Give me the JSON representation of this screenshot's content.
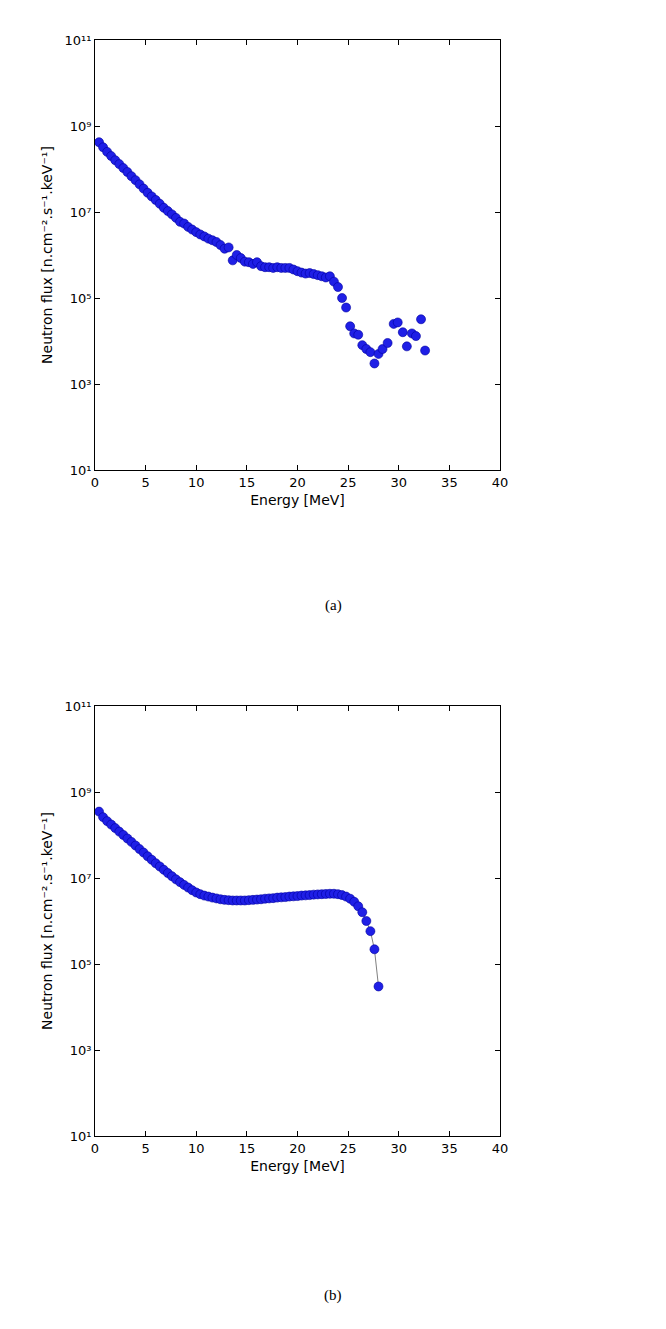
{
  "chart_data": [
    {
      "type": "scatter",
      "annotations": [
        "(a)"
      ],
      "x_label": "Energy [MeV]",
      "y_label": "Neutron flux [n.cm⁻².s⁻¹.keV⁻¹]",
      "color": "#1f1fe6",
      "marker": "circle",
      "log": "y",
      "grid": false,
      "xlim": [
        0,
        40
      ],
      "xticks": [
        0,
        5,
        10,
        15,
        20,
        25,
        30,
        35,
        40
      ],
      "ylim": [
        10,
        100000000000
      ],
      "yticks": [
        {
          "value": 10,
          "label": "10¹"
        },
        {
          "value": 1000,
          "label": "10³"
        },
        {
          "value": 100000,
          "label": "10⁵"
        },
        {
          "value": 10000000,
          "label": "10⁷"
        },
        {
          "value": 1000000000,
          "label": "10⁹"
        },
        {
          "value": 100000000000,
          "label": "10¹¹"
        }
      ],
      "x": [
        0.4,
        0.8,
        1.2,
        1.6,
        2.0,
        2.4,
        2.8,
        3.2,
        3.6,
        4.0,
        4.4,
        4.8,
        5.2,
        5.6,
        6.0,
        6.4,
        6.8,
        7.2,
        7.6,
        8.0,
        8.4,
        8.8,
        9.2,
        9.6,
        10.0,
        10.4,
        10.8,
        11.2,
        11.6,
        12.0,
        12.4,
        12.8,
        13.2,
        13.6,
        14.0,
        14.4,
        14.8,
        15.2,
        15.6,
        16.0,
        16.4,
        16.8,
        17.2,
        17.6,
        18.0,
        18.4,
        18.8,
        19.2,
        19.6,
        20.0,
        20.4,
        20.8,
        21.2,
        21.6,
        22.0,
        22.4,
        22.8,
        23.2,
        23.6,
        24.0,
        24.4,
        24.8,
        25.2,
        25.6,
        26.0,
        26.4,
        26.8,
        27.2,
        27.6,
        28.0,
        28.4,
        28.9,
        29.5,
        29.9,
        30.4,
        30.8,
        31.3,
        31.7,
        32.2,
        32.6
      ],
      "values": [
        420000000,
        320000000,
        250000000,
        200000000,
        160000000,
        130000000,
        105000000,
        85000000,
        68000000,
        55000000,
        44000000,
        35000000,
        28000000,
        23000000,
        19000000,
        15500000,
        12500000,
        10500000,
        8800000,
        7300000,
        5900000,
        5400000,
        4500000,
        3900000,
        3400000,
        3000000,
        2700000,
        2400000,
        2200000,
        2000000,
        1700000,
        1400000,
        1500000,
        750000,
        1000000,
        850000,
        700000,
        680000,
        620000,
        680000,
        550000,
        520000,
        520000,
        500000,
        520000,
        500000,
        500000,
        500000,
        460000,
        420000,
        390000,
        370000,
        380000,
        360000,
        340000,
        320000,
        300000,
        320000,
        240000,
        180000,
        100000,
        60000,
        22000,
        15000,
        14000,
        8000,
        6500,
        5500,
        3000,
        5000,
        6500,
        9000,
        25000,
        27000,
        16000,
        7500,
        15000,
        13000,
        32000,
        6000
      ]
    },
    {
      "type": "scatter",
      "annotations": [
        "(b)"
      ],
      "x_label": "Energy [MeV]",
      "y_label": "Neutron flux [n.cm⁻².s⁻¹.keV⁻¹]",
      "color": "#1f1fe6",
      "marker": "circle",
      "line_style": "solid",
      "log": "y",
      "grid": false,
      "xlim": [
        0,
        40
      ],
      "xticks": [
        0,
        5,
        10,
        15,
        20,
        25,
        30,
        35,
        40
      ],
      "ylim": [
        10,
        100000000000
      ],
      "yticks": [
        {
          "value": 10,
          "label": "10¹"
        },
        {
          "value": 1000,
          "label": "10³"
        },
        {
          "value": 100000,
          "label": "10⁵"
        },
        {
          "value": 10000000,
          "label": "10⁷"
        },
        {
          "value": 1000000000,
          "label": "10⁹"
        },
        {
          "value": 100000000000,
          "label": "10¹¹"
        }
      ],
      "x": [
        0.4,
        0.8,
        1.2,
        1.6,
        2.0,
        2.4,
        2.8,
        3.2,
        3.6,
        4.0,
        4.4,
        4.8,
        5.2,
        5.6,
        6.0,
        6.4,
        6.8,
        7.2,
        7.6,
        8.0,
        8.4,
        8.8,
        9.2,
        9.6,
        10.0,
        10.4,
        10.8,
        11.2,
        11.6,
        12.0,
        12.4,
        12.8,
        13.2,
        13.6,
        14.0,
        14.4,
        14.8,
        15.2,
        15.6,
        16.0,
        16.4,
        16.8,
        17.2,
        17.6,
        18.0,
        18.4,
        18.8,
        19.2,
        19.6,
        20.0,
        20.4,
        20.8,
        21.2,
        21.6,
        22.0,
        22.4,
        22.8,
        23.2,
        23.6,
        24.0,
        24.4,
        24.8,
        25.2,
        25.6,
        26.0,
        26.4,
        26.8,
        27.2,
        27.6,
        28.0
      ],
      "values": [
        350000000,
        260000000,
        210000000,
        175000000,
        145000000,
        120000000,
        100000000,
        83000000,
        69000000,
        57000000,
        47000000,
        39000000,
        32000000,
        26500000,
        22000000,
        18500000,
        15500000,
        13000000,
        11000000,
        9300000,
        8000000,
        6900000,
        6000000,
        5200000,
        4600000,
        4200000,
        3900000,
        3700000,
        3500000,
        3350000,
        3200000,
        3100000,
        3050000,
        3000000,
        3000000,
        3000000,
        3000000,
        3050000,
        3100000,
        3150000,
        3200000,
        3300000,
        3350000,
        3400000,
        3500000,
        3550000,
        3600000,
        3700000,
        3750000,
        3800000,
        3900000,
        3950000,
        4000000,
        4100000,
        4150000,
        4200000,
        4250000,
        4300000,
        4300000,
        4200000,
        4000000,
        3700000,
        3300000,
        2800000,
        2200000,
        1600000,
        1000000,
        580000,
        220000,
        30000
      ]
    }
  ]
}
